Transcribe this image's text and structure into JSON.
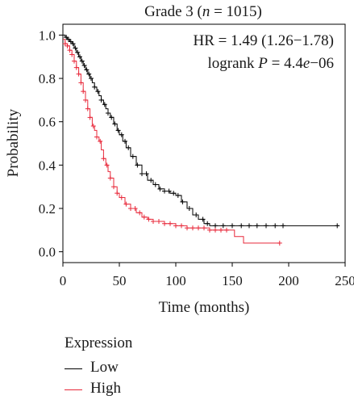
{
  "chart_data": {
    "type": "line",
    "title": "Grade 3 (n = 1015)",
    "title_parts": {
      "prefix": "Grade 3 (",
      "n_symbol": "n",
      "suffix": " = 1015)"
    },
    "xlabel": "Time (months)",
    "ylabel": "Probability",
    "xlim": [
      0,
      250
    ],
    "ylim": [
      -0.05,
      1.05
    ],
    "xticks": [
      "0",
      "50",
      "100",
      "150",
      "200",
      "250"
    ],
    "yticks": [
      "0.0",
      "0.2",
      "0.4",
      "0.6",
      "0.8",
      "1.0"
    ],
    "grid": false,
    "annotations": {
      "hr": "HR = 1.49 (1.26−1.78)",
      "logrank_prefix": "logrank ",
      "logrank_p_symbol": "P",
      "logrank_eq": " = 4.4",
      "logrank_e_symbol": "e",
      "logrank_exp": "−06"
    },
    "legend": {
      "title": "Expression",
      "placement": "below",
      "items": [
        {
          "label": "Low",
          "color": "#000000"
        },
        {
          "label": "High",
          "color": "#e8283a"
        }
      ]
    },
    "series": [
      {
        "name": "Low",
        "color": "#000000",
        "points": [
          [
            0,
            1.0
          ],
          [
            2,
            0.99
          ],
          [
            4,
            0.98
          ],
          [
            6,
            0.97
          ],
          [
            8,
            0.96
          ],
          [
            10,
            0.94
          ],
          [
            12,
            0.92
          ],
          [
            14,
            0.9
          ],
          [
            16,
            0.88
          ],
          [
            18,
            0.86
          ],
          [
            20,
            0.84
          ],
          [
            22,
            0.82
          ],
          [
            24,
            0.8
          ],
          [
            26,
            0.78
          ],
          [
            28,
            0.76
          ],
          [
            30,
            0.74
          ],
          [
            32,
            0.72
          ],
          [
            34,
            0.7
          ],
          [
            36,
            0.68
          ],
          [
            38,
            0.66
          ],
          [
            40,
            0.64
          ],
          [
            42,
            0.62
          ],
          [
            45,
            0.59
          ],
          [
            48,
            0.56
          ],
          [
            50,
            0.54
          ],
          [
            53,
            0.51
          ],
          [
            56,
            0.48
          ],
          [
            60,
            0.44
          ],
          [
            65,
            0.4
          ],
          [
            70,
            0.36
          ],
          [
            75,
            0.33
          ],
          [
            80,
            0.31
          ],
          [
            85,
            0.29
          ],
          [
            90,
            0.28
          ],
          [
            95,
            0.27
          ],
          [
            100,
            0.26
          ],
          [
            105,
            0.23
          ],
          [
            110,
            0.2
          ],
          [
            115,
            0.17
          ],
          [
            120,
            0.15
          ],
          [
            125,
            0.13
          ],
          [
            130,
            0.12
          ],
          [
            140,
            0.12
          ],
          [
            150,
            0.12
          ],
          [
            170,
            0.12
          ],
          [
            200,
            0.12
          ],
          [
            245,
            0.12
          ]
        ],
        "censors": [
          3,
          5,
          7,
          9,
          11,
          13,
          15,
          17,
          19,
          21,
          23,
          25,
          28,
          31,
          34,
          37,
          40,
          43,
          46,
          49,
          52,
          55,
          58,
          62,
          66,
          70,
          74,
          78,
          82,
          86,
          90,
          94,
          98,
          102,
          106,
          112,
          118,
          124,
          128,
          135,
          142,
          150,
          158,
          165,
          172,
          180,
          188,
          195,
          243
        ]
      },
      {
        "name": "High",
        "color": "#e8283a",
        "points": [
          [
            0,
            0.98
          ],
          [
            2,
            0.96
          ],
          [
            4,
            0.95
          ],
          [
            6,
            0.93
          ],
          [
            8,
            0.91
          ],
          [
            10,
            0.88
          ],
          [
            12,
            0.85
          ],
          [
            14,
            0.82
          ],
          [
            16,
            0.78
          ],
          [
            18,
            0.74
          ],
          [
            20,
            0.7
          ],
          [
            22,
            0.66
          ],
          [
            24,
            0.62
          ],
          [
            26,
            0.58
          ],
          [
            28,
            0.56
          ],
          [
            30,
            0.53
          ],
          [
            32,
            0.51
          ],
          [
            34,
            0.47
          ],
          [
            36,
            0.43
          ],
          [
            38,
            0.4
          ],
          [
            40,
            0.37
          ],
          [
            42,
            0.34
          ],
          [
            45,
            0.3
          ],
          [
            48,
            0.27
          ],
          [
            50,
            0.25
          ],
          [
            55,
            0.22
          ],
          [
            60,
            0.2
          ],
          [
            65,
            0.18
          ],
          [
            70,
            0.16
          ],
          [
            75,
            0.15
          ],
          [
            80,
            0.14
          ],
          [
            90,
            0.13
          ],
          [
            100,
            0.12
          ],
          [
            110,
            0.11
          ],
          [
            120,
            0.11
          ],
          [
            130,
            0.1
          ],
          [
            140,
            0.1
          ],
          [
            150,
            0.1
          ],
          [
            152,
            0.07
          ],
          [
            160,
            0.04
          ],
          [
            192,
            0.04
          ]
        ],
        "censors": [
          2,
          4,
          6,
          8,
          10,
          12,
          14,
          16,
          18,
          20,
          22,
          24,
          27,
          30,
          33,
          36,
          39,
          42,
          45,
          48,
          52,
          56,
          60,
          64,
          68,
          72,
          76,
          80,
          85,
          90,
          95,
          100,
          105,
          110,
          115,
          120,
          125,
          130,
          135,
          140,
          145,
          192
        ]
      }
    ]
  }
}
